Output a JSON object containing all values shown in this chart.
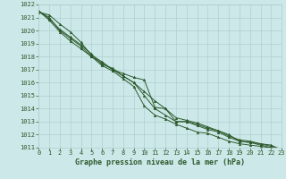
{
  "xlabel": "Graphe pression niveau de la mer (hPa)",
  "ylim": [
    1011,
    1022
  ],
  "xlim": [
    0,
    23
  ],
  "yticks": [
    1011,
    1012,
    1013,
    1014,
    1015,
    1016,
    1017,
    1018,
    1019,
    1020,
    1021,
    1022
  ],
  "xticks": [
    0,
    1,
    2,
    3,
    4,
    5,
    6,
    7,
    8,
    9,
    10,
    11,
    12,
    13,
    14,
    15,
    16,
    17,
    18,
    19,
    20,
    21,
    22,
    23
  ],
  "background_color": "#cce8e8",
  "grid_color": "#b0d0d0",
  "line_color": "#2d5a2d",
  "marker_color": "#2d5a2d",
  "series": [
    [
      1021.5,
      1021.0,
      1020.0,
      1019.4,
      1018.8,
      1018.0,
      1017.5,
      1017.0,
      1016.7,
      1016.4,
      1016.2,
      1014.1,
      1014.0,
      1013.0,
      1013.0,
      1012.8,
      1012.5,
      1012.3,
      1012.0,
      1011.5,
      1011.4,
      1011.3,
      1011.2,
      1010.8
    ],
    [
      1021.5,
      1020.8,
      1019.9,
      1019.2,
      1018.6,
      1018.0,
      1017.3,
      1016.9,
      1016.3,
      1015.7,
      1014.2,
      1013.5,
      1013.2,
      1012.8,
      1012.5,
      1012.2,
      1012.1,
      1011.8,
      1011.5,
      1011.3,
      1011.2,
      1011.1,
      1011.0,
      1010.9
    ],
    [
      1021.4,
      1021.2,
      1020.5,
      1019.9,
      1019.1,
      1018.1,
      1017.6,
      1017.0,
      1016.5,
      1016.0,
      1015.3,
      1014.6,
      1014.0,
      1013.3,
      1013.1,
      1012.9,
      1012.6,
      1012.3,
      1011.9,
      1011.6,
      1011.5,
      1011.3,
      1011.1,
      1010.9
    ],
    [
      1021.5,
      1020.9,
      1020.1,
      1019.5,
      1018.9,
      1018.2,
      1017.4,
      1017.1,
      1016.5,
      1016.0,
      1015.0,
      1014.0,
      1013.5,
      1013.0,
      1013.0,
      1012.7,
      1012.4,
      1012.2,
      1011.8,
      1011.5,
      1011.4,
      1011.2,
      1011.0,
      1010.9
    ]
  ],
  "tick_fontsize": 5,
  "label_fontsize": 6,
  "tick_color": "#2d5a2d",
  "label_color": "#2d5a2d"
}
